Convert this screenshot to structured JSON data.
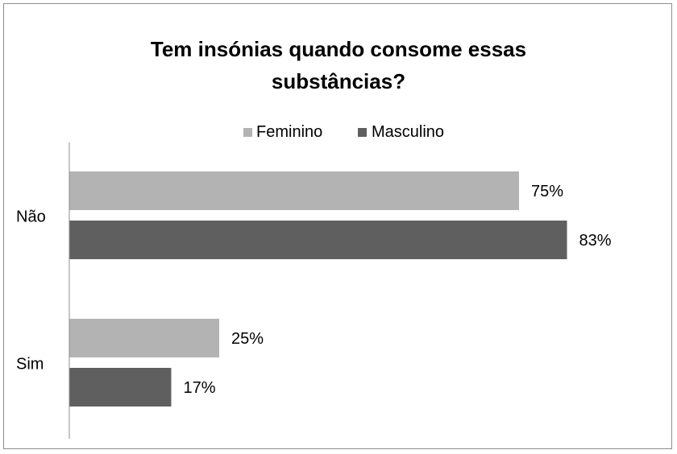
{
  "chart_data": {
    "type": "bar",
    "orientation": "horizontal",
    "title_lines": [
      "Tem insónias quando consome essas",
      "substâncias?"
    ],
    "categories": [
      "Não",
      "Sim"
    ],
    "series": [
      {
        "name": "Feminino",
        "values": [
          75,
          25
        ],
        "labels": [
          "75%",
          "25%"
        ],
        "color": "#b3b3b3"
      },
      {
        "name": "Masculino",
        "values": [
          83,
          17
        ],
        "labels": [
          "83%",
          "17%"
        ],
        "color": "#5f5f5f"
      }
    ],
    "xlim": [
      0,
      100
    ],
    "value_unit": "%",
    "legend_position": "top",
    "grid": false
  }
}
